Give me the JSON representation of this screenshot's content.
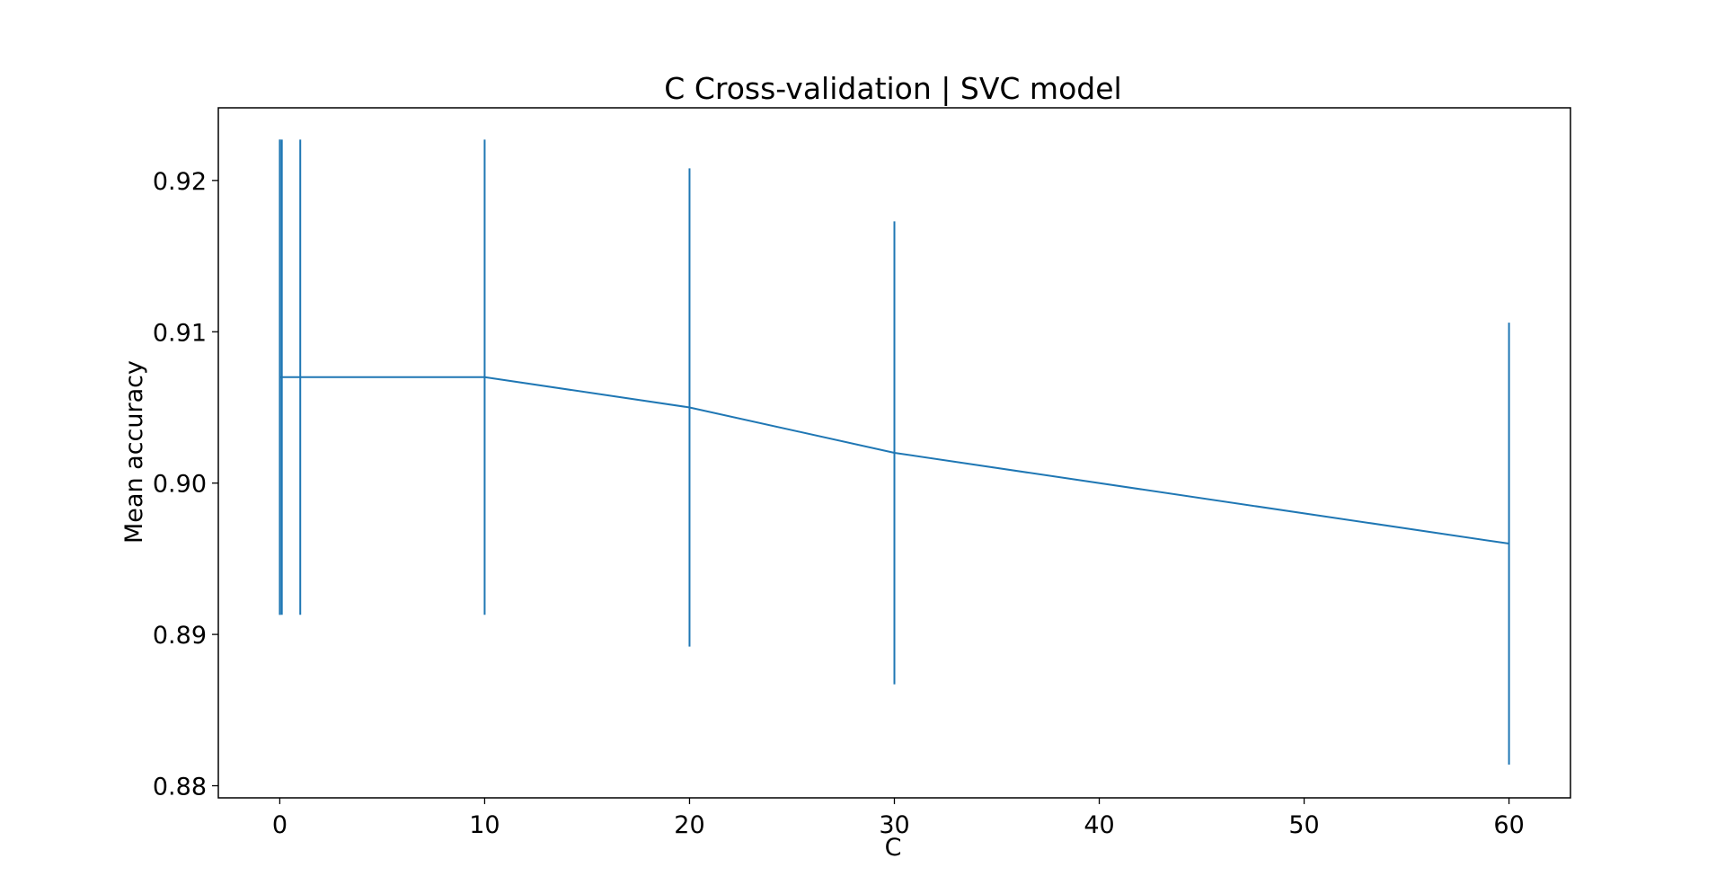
{
  "chart_data": {
    "type": "line",
    "title": "C Cross-validation | SVC model",
    "xlabel": "C",
    "ylabel": "Mean accuracy",
    "xlim": [
      -3,
      63
    ],
    "ylim": [
      0.8792,
      0.9248
    ],
    "xticks": [
      0,
      10,
      20,
      30,
      40,
      50,
      60
    ],
    "yticks": [
      0.88,
      0.89,
      0.9,
      0.91,
      0.92
    ],
    "ytick_labels": [
      "0.88",
      "0.89",
      "0.90",
      "0.91",
      "0.92"
    ],
    "grid": false,
    "series": [
      {
        "color": "#1f77b4",
        "x": [
          0.001,
          0.01,
          0.1,
          1,
          10,
          20,
          30,
          60
        ],
        "y": [
          0.907,
          0.907,
          0.907,
          0.907,
          0.907,
          0.905,
          0.902,
          0.896
        ],
        "yerr": [
          0.0157,
          0.0157,
          0.0157,
          0.0157,
          0.0157,
          0.0158,
          0.0153,
          0.0146
        ]
      }
    ]
  }
}
